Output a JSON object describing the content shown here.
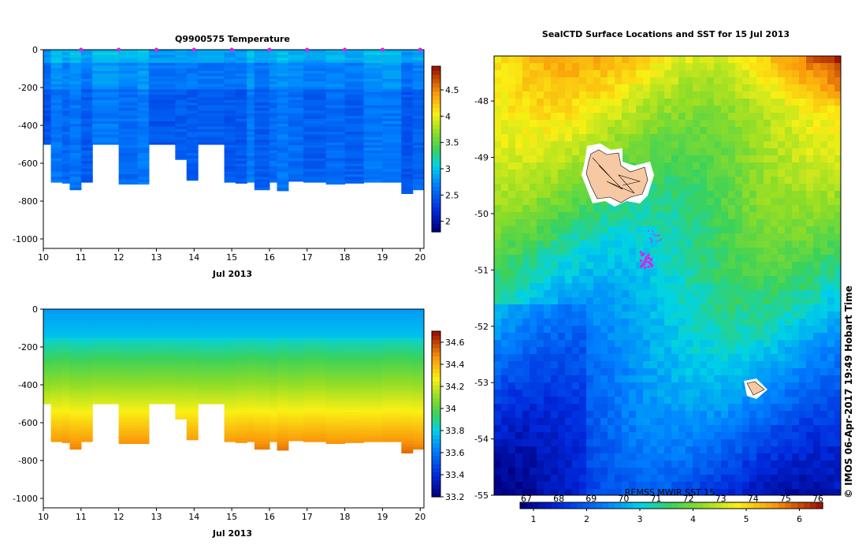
{
  "chart_data": [
    {
      "type": "heatmap",
      "title": "Q9900575  Temperature",
      "xlabel": "Jul 2013",
      "ylabel": "",
      "xlim": [
        10,
        20.1
      ],
      "ylim": [
        -1050,
        0
      ],
      "x_ticks": [
        "10",
        "11",
        "12",
        "13",
        "14",
        "15",
        "16",
        "17",
        "18",
        "19",
        "20"
      ],
      "y_ticks": [
        "0",
        "-200",
        "-400",
        "-600",
        "-800",
        "-1000"
      ],
      "colorbar": {
        "min": 1.8,
        "max": 4.95,
        "ticks": [
          "2",
          "2.5",
          "3",
          "3.5",
          "4",
          "4.5"
        ]
      },
      "profile_markers": [
        11,
        12,
        13,
        14,
        15,
        16,
        17,
        18,
        19,
        20
      ],
      "profiles": [
        {
          "t": 10.0,
          "depth": 500
        },
        {
          "t": 10.2,
          "depth": 700
        },
        {
          "t": 10.5,
          "depth": 705
        },
        {
          "t": 10.7,
          "depth": 740
        },
        {
          "t": 11.0,
          "depth": 700
        },
        {
          "t": 11.3,
          "depth": 500
        },
        {
          "t": 12.0,
          "depth": 710
        },
        {
          "t": 12.5,
          "depth": 710
        },
        {
          "t": 12.8,
          "depth": 500
        },
        {
          "t": 13.5,
          "depth": 580
        },
        {
          "t": 13.8,
          "depth": 690
        },
        {
          "t": 14.1,
          "depth": 500
        },
        {
          "t": 14.8,
          "depth": 700
        },
        {
          "t": 15.1,
          "depth": 705
        },
        {
          "t": 15.4,
          "depth": 700
        },
        {
          "t": 15.6,
          "depth": 740
        },
        {
          "t": 16.0,
          "depth": 700
        },
        {
          "t": 16.2,
          "depth": 745
        },
        {
          "t": 16.5,
          "depth": 695
        },
        {
          "t": 16.9,
          "depth": 700
        },
        {
          "t": 17.5,
          "depth": 710
        },
        {
          "t": 18.0,
          "depth": 705
        },
        {
          "t": 18.5,
          "depth": 700
        },
        {
          "t": 19.0,
          "depth": 700
        },
        {
          "t": 19.5,
          "depth": 760
        },
        {
          "t": 19.8,
          "depth": 740
        }
      ]
    },
    {
      "type": "heatmap",
      "title": "",
      "xlabel": "Jul 2013",
      "ylabel": "",
      "xlim": [
        10,
        20.1
      ],
      "ylim": [
        -1050,
        0
      ],
      "x_ticks": [
        "10",
        "11",
        "12",
        "13",
        "14",
        "15",
        "16",
        "17",
        "18",
        "19",
        "20"
      ],
      "y_ticks": [
        "0",
        "-200",
        "-400",
        "-600",
        "-800",
        "-1000"
      ],
      "colorbar": {
        "min": 33.2,
        "max": 34.7,
        "ticks": [
          "33.2",
          "33.4",
          "33.6",
          "33.8",
          "34",
          "34.2",
          "34.4",
          "34.6"
        ]
      }
    },
    {
      "type": "heatmap",
      "title": "SealCTD Surface Locations and SST for 15 Jul 2013",
      "xlabel": "",
      "ylabel": "",
      "ylim": [
        -55,
        -47.2
      ],
      "y_ticks": [
        "-48",
        "-49",
        "-50",
        "-51",
        "-52",
        "-53",
        "-54",
        "-55"
      ],
      "colorbar": {
        "label": "REMSS MWIR SST 15",
        "ticks_bottom": [
          "1",
          "2",
          "3",
          "4",
          "5",
          "6"
        ],
        "ticks_top": [
          "67",
          "68",
          "69",
          "70",
          "71",
          "72",
          "73",
          "74",
          "75",
          "76"
        ]
      },
      "credit": "© IMOS 06-Apr-2017 19:49 Hobart Time"
    }
  ]
}
